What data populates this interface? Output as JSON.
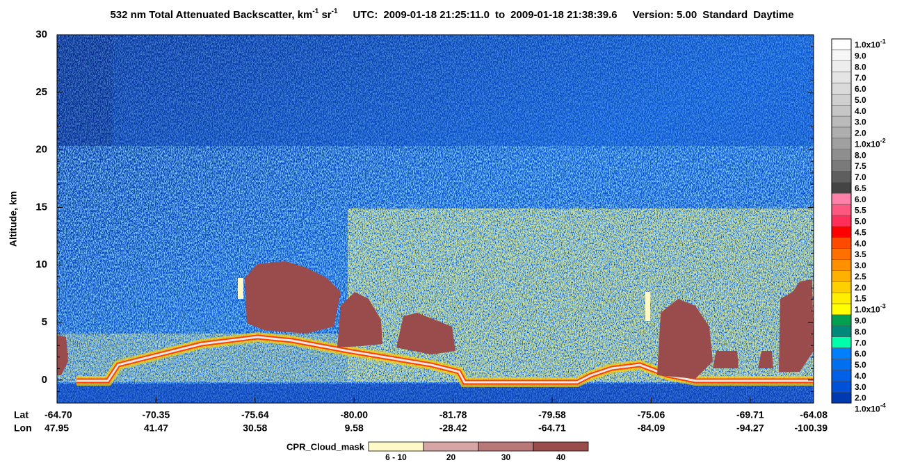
{
  "chart_data": {
    "type": "curtain",
    "title": {
      "parts": [
        {
          "text": "532 nm Total Attenuated Backscatter, km"
        },
        {
          "text": "-1",
          "sup": true
        },
        {
          "text": " sr"
        },
        {
          "text": "-1",
          "sup": true
        }
      ],
      "utc_label": "UTC:",
      "start": "2009-01-18 21:25:11.0",
      "to": "to",
      "end": "2009-01-18 21:38:39.6",
      "version": "Version: 5.00",
      "mode": "Standard",
      "daytime": "Daytime"
    },
    "ylabel": "Altitude, km",
    "ylim": [
      -2,
      30
    ],
    "yticks": [
      0,
      5,
      10,
      15,
      20,
      25,
      30
    ],
    "x_rows": {
      "names": [
        "Lat",
        "Lon"
      ],
      "lat": [
        "-64.70",
        "-70.35",
        "-75.64",
        "-80.00",
        "-81.78",
        "-79.58",
        "-75.06",
        "-69.71",
        "-64.08"
      ],
      "lon": [
        "47.95",
        "41.47",
        "30.58",
        "9.58",
        "-28.42",
        "-64.71",
        "-84.09",
        "-94.27",
        "-100.39"
      ]
    },
    "colorbar": {
      "labels": [
        {
          "text": "1.0x10",
          "sup": "-1"
        },
        {
          "text": "9.0"
        },
        {
          "text": "8.0"
        },
        {
          "text": "7.0"
        },
        {
          "text": "6.0"
        },
        {
          "text": "5.0"
        },
        {
          "text": "4.0"
        },
        {
          "text": "3.0"
        },
        {
          "text": "2.0"
        },
        {
          "text": "1.0x10",
          "sup": "-2"
        },
        {
          "text": "8.0"
        },
        {
          "text": "7.5"
        },
        {
          "text": "7.0"
        },
        {
          "text": "6.5"
        },
        {
          "text": "6.0"
        },
        {
          "text": "5.5"
        },
        {
          "text": "5.0"
        },
        {
          "text": "4.5"
        },
        {
          "text": "4.0"
        },
        {
          "text": "3.5"
        },
        {
          "text": "3.0"
        },
        {
          "text": "2.5"
        },
        {
          "text": "2.0"
        },
        {
          "text": "1.5"
        },
        {
          "text": "1.0x10",
          "sup": "-3"
        },
        {
          "text": "9.0"
        },
        {
          "text": "8.0"
        },
        {
          "text": "7.0"
        },
        {
          "text": "6.0"
        },
        {
          "text": "5.0"
        },
        {
          "text": "4.0"
        },
        {
          "text": "3.0"
        },
        {
          "text": "2.0"
        },
        {
          "text": "1.0x10",
          "sup": "-4"
        }
      ],
      "colors": [
        "#ffffff",
        "#f6f6f6",
        "#ededed",
        "#e4e4e4",
        "#dadada",
        "#d0d0d0",
        "#c6c6c6",
        "#bababa",
        "#aeaeae",
        "#a0a0a0",
        "#8e8e8e",
        "#7a7a7a",
        "#5e5e5e",
        "#444444",
        "#ff80a8",
        "#ff5880",
        "#ff2f5a",
        "#ff0000",
        "#ff4a00",
        "#ff7000",
        "#ff9000",
        "#ffb000",
        "#ffd000",
        "#ffee00",
        "#ffff00",
        "#00a050",
        "#008878",
        "#00ffaa",
        "#0080ff",
        "#0070f0",
        "#0060e8",
        "#0050d8",
        "#003ab0"
      ]
    },
    "cloud_mask": {
      "name": "CPR_Cloud_mask",
      "categories": [
        "6 - 10",
        "20",
        "30",
        "40"
      ],
      "colors": [
        "#fff9c8",
        "#d6a6a6",
        "#b87878",
        "#9a4b4b"
      ]
    }
  }
}
